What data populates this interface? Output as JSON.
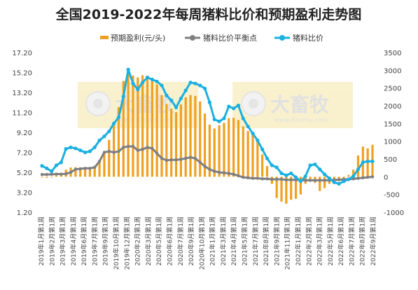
{
  "chart_data": {
    "type": "bar",
    "title": "全国2019-2022年每周猪料比价和预期盈利走势图",
    "legend": [
      {
        "label": "预期盈利(元/头)",
        "color": "#f0a020",
        "kind": "bar"
      },
      {
        "label": "猪料比价平衡点",
        "color": "#7f7f7f",
        "kind": "line"
      },
      {
        "label": "猪料比价",
        "color": "#1bb0e0",
        "kind": "line"
      }
    ],
    "legend_position": "top",
    "ylim_left": [
      1.2,
      17.2
    ],
    "ylim_right": [
      -1000,
      3500
    ],
    "y_left_ticks": [
      "1.20",
      "3.20",
      "5.20",
      "7.20",
      "9.20",
      "11.20",
      "13.20",
      "15.20",
      "17.20"
    ],
    "y_right_ticks": [
      "-1000",
      "-500",
      "0",
      "500",
      "1000",
      "1500",
      "2000",
      "2500",
      "3000",
      "3500"
    ],
    "x_tick_labels": [
      "2019年1月第1周",
      "2019年2月第1周",
      "2019年3月第1周",
      "2019年4月第1周",
      "2019年6月第1周",
      "2019年7月第1周",
      "2019年9月第1周",
      "2019年10月第1周",
      "2019年12月第1周",
      "2020年2月第1周",
      "2020年3月第1周",
      "2020年5月第1周",
      "2020年6月第1周",
      "2020年7月第1周",
      "2020年9月第1周",
      "2020年10月第1周",
      "2021年1月第1周",
      "2021年3月第1周",
      "2021年4月第1周",
      "2021年5月第1周",
      "2021年7月第1周",
      "2021年8月第1周",
      "2021年9月第1周",
      "2021年11月第1周",
      "2022年1月第1周",
      "2022年2月第1周",
      "2022年3月第1周",
      "2022年5月第1周",
      "2022年6月第1周",
      "2022年7月第1周",
      "2022年8月第1周",
      "2022年9月第1周"
    ],
    "watermark": {
      "brand": "大畜牧",
      "url": "www.dxumu.com"
    },
    "series": [
      {
        "name": "猪料比价",
        "axis": "left",
        "values": [
          5.85,
          5.6,
          5.3,
          5.9,
          6.2,
          7.55,
          7.7,
          7.6,
          7.4,
          7.2,
          7.3,
          7.7,
          8.4,
          8.8,
          9.3,
          10.1,
          10.7,
          12.8,
          15.5,
          14.1,
          13.5,
          14.2,
          14.7,
          14.5,
          14.3,
          13.9,
          12.9,
          12.4,
          11.7,
          12.6,
          13.4,
          14.2,
          14.1,
          13.9,
          13.6,
          12.2,
          10.5,
          10.3,
          10.6,
          11.8,
          11.6,
          11.9,
          10.6,
          9.8,
          9.1,
          8.4,
          7.5,
          6.6,
          5.9,
          5.7,
          5.1,
          4.9,
          5.1,
          4.7,
          4.3,
          4.8,
          5.9,
          6.0,
          5.5,
          5.0,
          4.6,
          4.2,
          4.05,
          4.3,
          4.5,
          4.8,
          5.5,
          6.2,
          6.3,
          6.3
        ]
      },
      {
        "name": "猪料比价平衡点",
        "axis": "left",
        "values": [
          4.98,
          4.98,
          5.0,
          5.02,
          5.02,
          5.05,
          5.2,
          5.5,
          5.55,
          5.6,
          5.6,
          5.7,
          6.3,
          7.2,
          7.3,
          7.2,
          7.3,
          7.7,
          7.8,
          7.8,
          7.4,
          7.5,
          7.7,
          7.6,
          7.1,
          6.6,
          6.4,
          6.45,
          6.45,
          6.5,
          6.6,
          6.7,
          6.6,
          6.2,
          5.8,
          5.5,
          5.3,
          5.2,
          5.15,
          5.1,
          5.0,
          4.85,
          4.7,
          4.65,
          4.6,
          4.6,
          4.55,
          4.55,
          4.5,
          4.5,
          4.5,
          4.45,
          4.45,
          4.45,
          4.4,
          4.4,
          4.4,
          4.4,
          4.4,
          4.4,
          4.4,
          4.45,
          4.45,
          4.5,
          4.5,
          4.55,
          4.6,
          4.65,
          4.7,
          4.75
        ]
      },
      {
        "name": "预期盈利(元/头)",
        "axis": "right",
        "values": [
          -20,
          -30,
          -20,
          30,
          50,
          200,
          260,
          270,
          260,
          230,
          220,
          300,
          460,
          700,
          1040,
          1480,
          1960,
          2700,
          2980,
          2850,
          2800,
          2860,
          2850,
          2790,
          2600,
          2300,
          2050,
          1920,
          1820,
          2040,
          2240,
          2300,
          2280,
          2120,
          1780,
          1470,
          1360,
          1450,
          1520,
          1650,
          1660,
          1600,
          1420,
          1290,
          1200,
          1020,
          630,
          300,
          -200,
          -600,
          -700,
          -760,
          -650,
          -620,
          -500,
          -200,
          -60,
          -170,
          -400,
          -320,
          -200,
          -120,
          -80,
          -40,
          50,
          200,
          600,
          850,
          800,
          900
        ]
      }
    ]
  }
}
